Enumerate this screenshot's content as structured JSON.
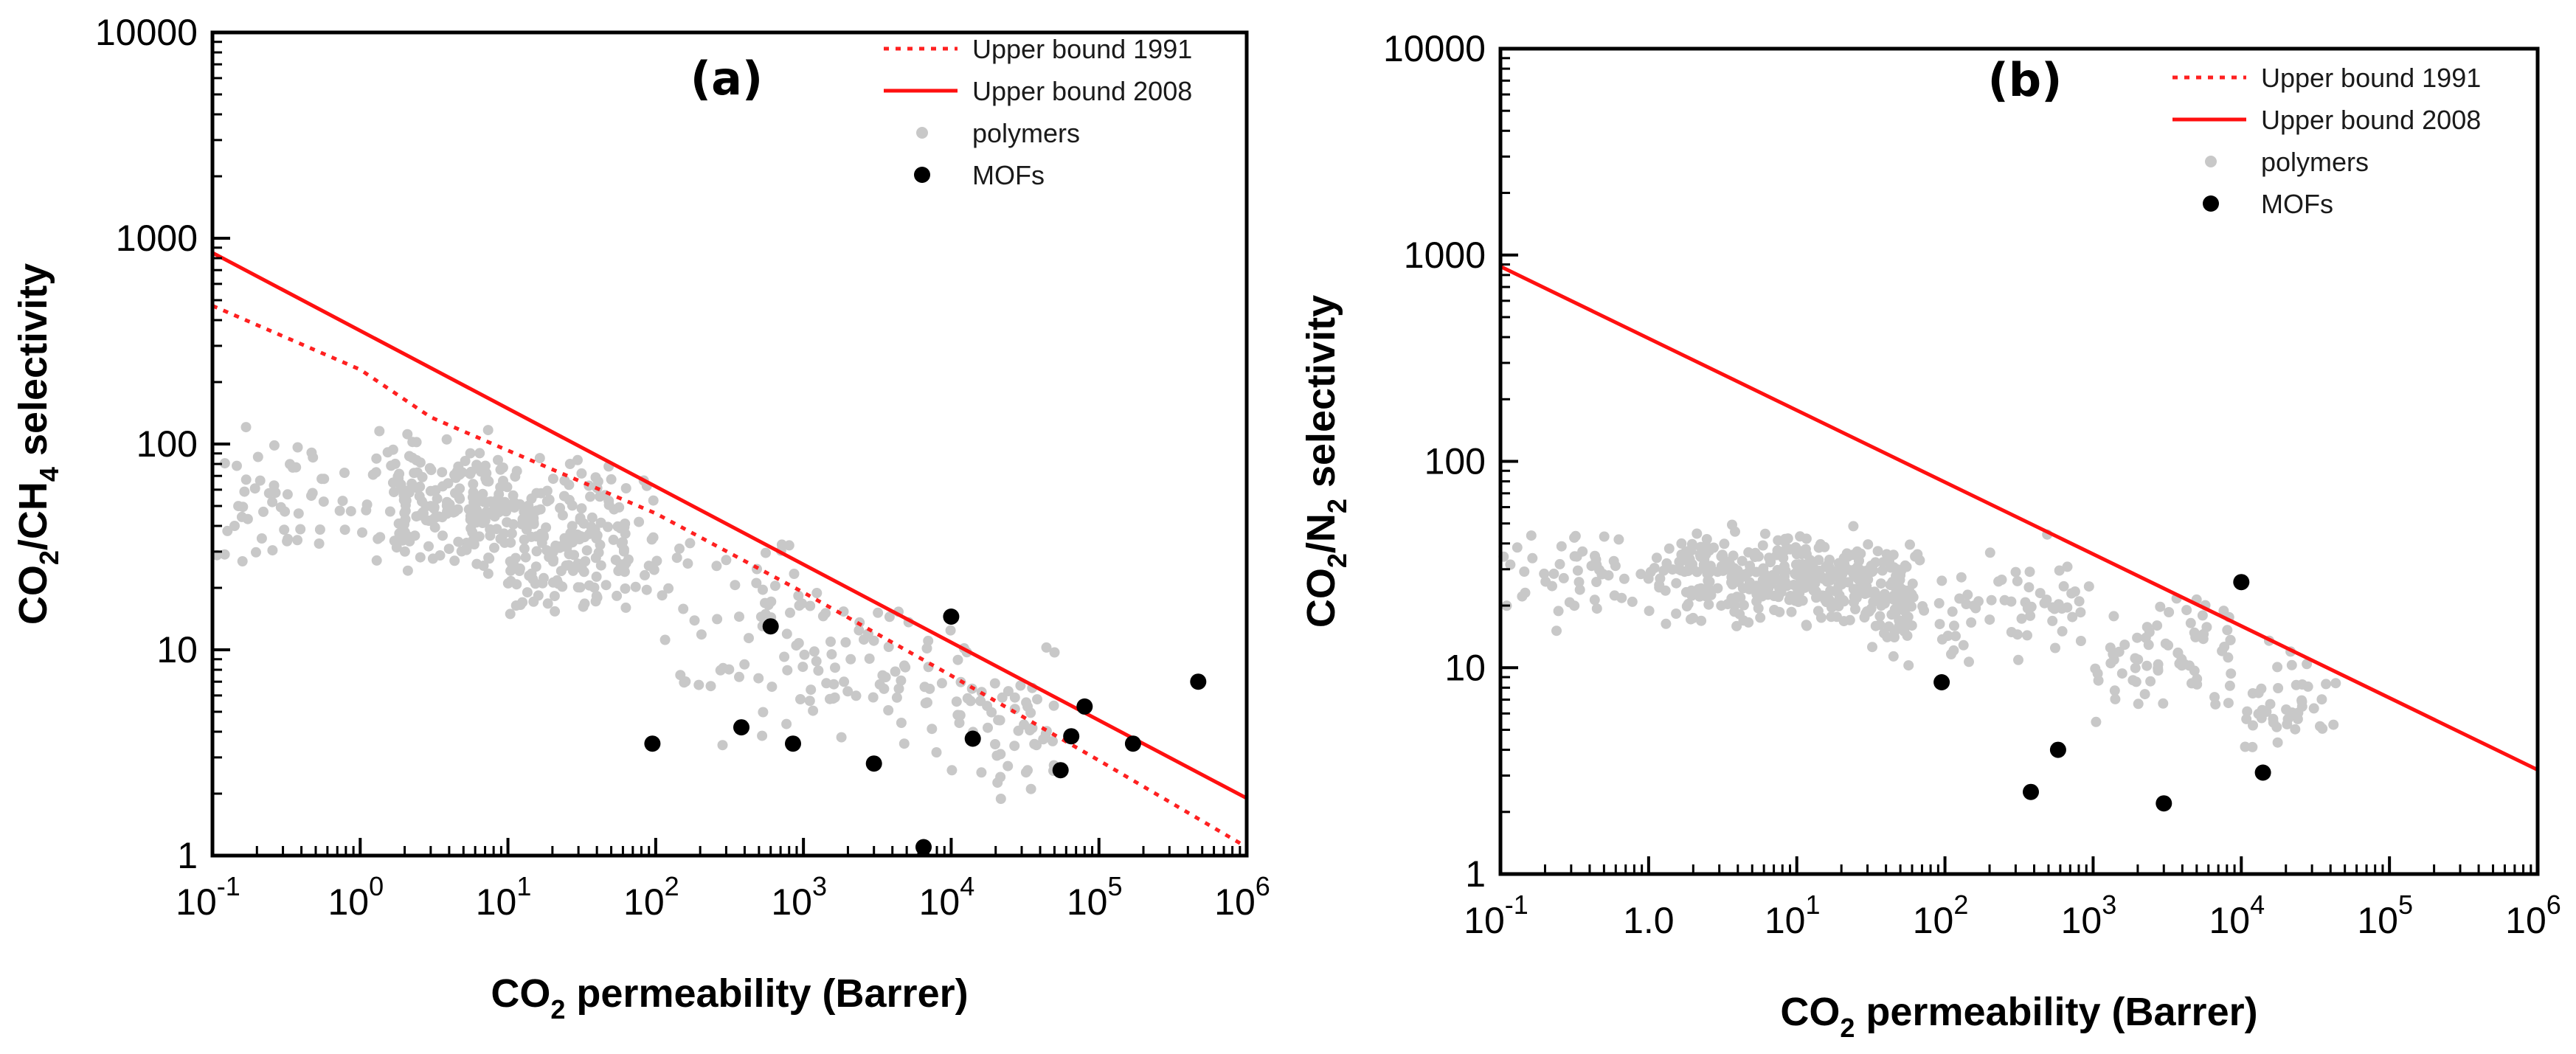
{
  "chart_data": [
    {
      "type": "scatter",
      "panel_label": "(a)",
      "xlabel": {
        "main": "CO",
        "sub": "2",
        "rest": " permeability (Barrer)"
      },
      "ylabel": {
        "parts": [
          [
            "CO",
            false
          ],
          [
            "2",
            true
          ],
          [
            "/CH",
            false
          ],
          [
            "4",
            true
          ],
          [
            " selectivity",
            false
          ]
        ]
      },
      "x_scale": "log",
      "y_scale": "log",
      "xlim": [
        0.1,
        1000000
      ],
      "ylim": [
        1,
        10000
      ],
      "x_ticks": [
        {
          "base": "10",
          "exp": "-1",
          "value": 0.1
        },
        {
          "base": "10",
          "exp": "0",
          "value": 1
        },
        {
          "base": "10",
          "exp": "1",
          "value": 10
        },
        {
          "base": "10",
          "exp": "2",
          "value": 100
        },
        {
          "base": "10",
          "exp": "3",
          "value": 1000
        },
        {
          "base": "10",
          "exp": "4",
          "value": 10000
        },
        {
          "base": "10",
          "exp": "5",
          "value": 100000
        },
        {
          "base": "10",
          "exp": "6",
          "value": 1000000
        }
      ],
      "y_ticks": [
        {
          "label": "1",
          "value": 1
        },
        {
          "label": "10",
          "value": 10
        },
        {
          "label": "100",
          "value": 100
        },
        {
          "label": "1000",
          "value": 1000
        },
        {
          "label": "10000",
          "value": 10000
        }
      ],
      "legend": {
        "position": "top-right",
        "items": [
          {
            "label": "Upper bound 1991",
            "kind": "dotted-line",
            "color": "#ff2020"
          },
          {
            "label": "Upper bound 2008",
            "kind": "solid-line",
            "color": "#ff1010"
          },
          {
            "label": "polymers",
            "kind": "marker",
            "color": "#c8c8c8"
          },
          {
            "label": "MOFs",
            "kind": "marker",
            "color": "#000000"
          }
        ]
      },
      "series": [
        {
          "name": "Upper bound 1991",
          "kind": "line",
          "style": "dotted",
          "color": "#ff2020",
          "points": [
            [
              0.1,
              470
            ],
            [
              1,
              230
            ],
            [
              3,
              135
            ],
            [
              10,
              93
            ],
            [
              100,
              46
            ],
            [
              1000,
              19
            ],
            [
              10000,
              7.5
            ],
            [
              100000,
              2.9
            ],
            [
              1000000,
              1.1
            ]
          ]
        },
        {
          "name": "Upper bound 2008",
          "kind": "line",
          "style": "solid",
          "color": "#ff1010",
          "points": [
            [
              0.1,
              850
            ],
            [
              1000000,
              1.9
            ]
          ]
        },
        {
          "name": "MOFs",
          "kind": "points",
          "color": "#000000",
          "points": [
            [
              95,
              3.5
            ],
            [
              380,
              4.2
            ],
            [
              600,
              13
            ],
            [
              850,
              3.5
            ],
            [
              3000,
              2.8
            ],
            [
              6500,
              1.1
            ],
            [
              10000,
              14.5
            ],
            [
              14000,
              3.7
            ],
            [
              55000,
              2.6
            ],
            [
              65000,
              3.8
            ],
            [
              80000,
              5.3
            ],
            [
              170000,
              3.5
            ],
            [
              470000,
              7
            ]
          ]
        }
      ],
      "polymer_cloud": {
        "name": "polymers",
        "color": "#c8c8c8",
        "seed": 11,
        "count": 620,
        "log_x_range": [
          -1,
          4.7
        ],
        "regions": [
          {
            "x_from": -1,
            "x_to": 1,
            "y_lo": 18,
            "y_hi": 140
          },
          {
            "x_from": 1,
            "x_to": 2,
            "y_lo": 10,
            "y_hi": 110
          },
          {
            "x_from": 2,
            "x_to": 3,
            "y_lo": 3,
            "y_hi": 60
          },
          {
            "x_from": 3,
            "x_to": 4,
            "y_lo": 2,
            "y_hi": 35
          },
          {
            "x_from": 4,
            "x_to": 4.7,
            "y_lo": 1.2,
            "y_hi": 15
          }
        ]
      }
    },
    {
      "type": "scatter",
      "panel_label": "(b)",
      "xlabel": {
        "main": "CO",
        "sub": "2",
        "rest": " permeability (Barrer)"
      },
      "ylabel": {
        "parts": [
          [
            "CO",
            false
          ],
          [
            "2",
            true
          ],
          [
            "/N",
            false
          ],
          [
            "2",
            true
          ],
          [
            " selectivity",
            false
          ]
        ]
      },
      "x_scale": "log",
      "y_scale": "log",
      "xlim": [
        0.1,
        1000000
      ],
      "ylim": [
        1,
        10000
      ],
      "x_ticks": [
        {
          "base": "10",
          "exp": "-1",
          "value": 0.1
        },
        {
          "base": "1.0",
          "exp": "",
          "value": 1
        },
        {
          "base": "10",
          "exp": "1",
          "value": 10
        },
        {
          "base": "10",
          "exp": "2",
          "value": 100
        },
        {
          "base": "10",
          "exp": "3",
          "value": 1000
        },
        {
          "base": "10",
          "exp": "4",
          "value": 10000
        },
        {
          "base": "10",
          "exp": "5",
          "value": 100000
        },
        {
          "base": "10",
          "exp": "6",
          "value": 1000000
        }
      ],
      "y_ticks": [
        {
          "label": "1",
          "value": 1
        },
        {
          "label": "10",
          "value": 10
        },
        {
          "label": "100",
          "value": 100
        },
        {
          "label": "1000",
          "value": 1000
        },
        {
          "label": "10000",
          "value": 10000
        }
      ],
      "legend": {
        "position": "top-right",
        "items": [
          {
            "label": "Upper bound 1991",
            "kind": "dotted-line",
            "color": "#ff2020"
          },
          {
            "label": "Upper bound 2008",
            "kind": "solid-line",
            "color": "#ff1010"
          },
          {
            "label": "polymers",
            "kind": "marker",
            "color": "#c8c8c8"
          },
          {
            "label": "MOFs",
            "kind": "marker",
            "color": "#000000"
          }
        ]
      },
      "series": [
        {
          "name": "Upper bound 2008",
          "kind": "line",
          "style": "solid",
          "color": "#ff1010",
          "points": [
            [
              0.1,
              880
            ],
            [
              1000000,
              3.2
            ]
          ]
        },
        {
          "name": "MOFs",
          "kind": "points",
          "color": "#000000",
          "points": [
            [
              95,
              8.5
            ],
            [
              380,
              2.5
            ],
            [
              580,
              4
            ],
            [
              3000,
              2.2
            ],
            [
              10000,
              26
            ],
            [
              14000,
              3.1
            ]
          ]
        }
      ],
      "polymer_cloud": {
        "name": "polymers",
        "color": "#c8c8c8",
        "seed": 29,
        "count": 640,
        "log_x_range": [
          -1,
          4.7
        ],
        "regions": [
          {
            "x_from": -1,
            "x_to": 1.5,
            "y_lo": 14,
            "y_hi": 55
          },
          {
            "x_from": 1.5,
            "x_to": 3,
            "y_lo": 9,
            "y_hi": 50
          },
          {
            "x_from": 3,
            "x_to": 4,
            "y_lo": 5,
            "y_hi": 30
          },
          {
            "x_from": 4,
            "x_to": 4.7,
            "y_lo": 2.5,
            "y_hi": 20
          }
        ]
      }
    }
  ]
}
